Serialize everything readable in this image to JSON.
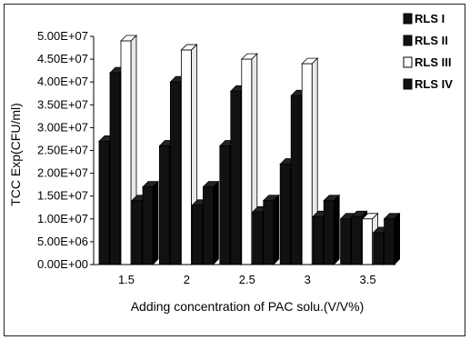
{
  "chart_data": {
    "type": "bar",
    "style": "3d-clustered",
    "title": "",
    "xlabel": "Adding concentration of PAC solu.(V/V%)",
    "ylabel": "TCC  Exp(CFU/ml)",
    "categories": [
      "1.5",
      "2",
      "2.5",
      "3",
      "3.5"
    ],
    "ylim": [
      0,
      50000000
    ],
    "y_ticks": [
      "0.00E+00",
      "5.00E+06",
      "1.00E+07",
      "1.50E+07",
      "2.00E+07",
      "2.50E+07",
      "3.00E+07",
      "3.50E+07",
      "4.00E+07",
      "4.50E+07",
      "5.00E+07"
    ],
    "grid": false,
    "legend_position": "right",
    "series": [
      {
        "name": "RLS I",
        "color": "#111111",
        "values": [
          27000000,
          26000000,
          26000000,
          22000000,
          10000000
        ]
      },
      {
        "name": "RLS II",
        "color": "#111111",
        "values": [
          42000000,
          40000000,
          38000000,
          37000000,
          10500000
        ]
      },
      {
        "name": "RLS III",
        "color": "#ffffff",
        "values": [
          49000000,
          47000000,
          45000000,
          44000000,
          10000000
        ]
      },
      {
        "name": "RLS IV",
        "color": "#111111",
        "values": [
          14000000,
          13000000,
          11500000,
          10500000,
          7000000
        ]
      }
    ],
    "extra_bar": {
      "values": [
        17000000,
        17000000,
        14000000,
        14000000,
        10000000
      ]
    }
  }
}
